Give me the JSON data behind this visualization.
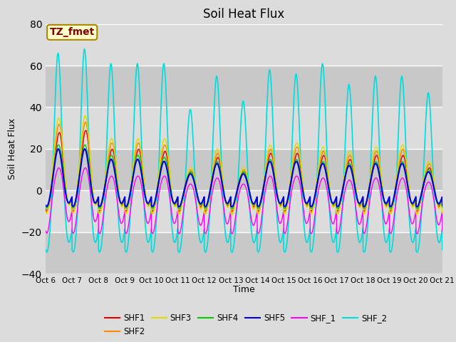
{
  "title": "Soil Heat Flux",
  "xlabel": "Time",
  "ylabel": "Soil Heat Flux",
  "xlim": [
    0,
    15
  ],
  "ylim": [
    -40,
    80
  ],
  "yticks": [
    -40,
    -20,
    0,
    20,
    40,
    60,
    80
  ],
  "xtick_labels": [
    "Oct 6",
    "Oct 7",
    "Oct 8",
    "Oct 9",
    "Oct 10",
    "Oct 11",
    "Oct 12",
    "Oct 13",
    "Oct 14",
    "Oct 15",
    "Oct 16",
    "Oct 17",
    "Oct 18",
    "Oct 19",
    "Oct 20",
    "Oct 21"
  ],
  "series_colors": {
    "SHF1": "#dd0000",
    "SHF2": "#ff8800",
    "SHF3": "#dddd00",
    "SHF4": "#00cc00",
    "SHF5": "#0000dd",
    "SHF_1": "#ff00ff",
    "SHF_2": "#00dddd"
  },
  "annotation_text": "TZ_fmet",
  "annotation_bg": "#ffffcc",
  "annotation_border": "#aa8800",
  "annotation_text_color": "#880000",
  "bg_light": "#dcdcdc",
  "bg_dark": "#c8c8c8",
  "title_fontsize": 12,
  "day_amps_shf5": [
    20,
    20,
    15,
    15,
    14,
    8,
    13,
    8,
    14,
    14,
    13,
    12,
    13,
    13,
    9
  ],
  "day_amps_shf4": [
    22,
    22,
    17,
    17,
    16,
    9,
    14,
    9,
    15,
    15,
    14,
    13,
    14,
    14,
    10
  ],
  "day_amps_shf3": [
    35,
    36,
    25,
    25,
    25,
    11,
    20,
    11,
    22,
    23,
    21,
    19,
    21,
    22,
    14
  ],
  "day_amps_shf2": [
    32,
    33,
    23,
    23,
    22,
    10,
    18,
    10,
    20,
    21,
    19,
    17,
    19,
    20,
    13
  ],
  "day_amps_shf1": [
    28,
    29,
    20,
    20,
    19,
    9,
    16,
    9,
    18,
    18,
    17,
    15,
    17,
    17,
    11
  ],
  "day_amps_shf_1": [
    12,
    12,
    8,
    8,
    8,
    4,
    7,
    4,
    8,
    8,
    7,
    6,
    7,
    7,
    5
  ],
  "day_amps_shf_2": [
    68,
    70,
    63,
    63,
    63,
    41,
    57,
    45,
    60,
    58,
    63,
    53,
    57,
    57,
    49
  ],
  "night_depth_shf1": -10,
  "night_depth_shf2": -11,
  "night_depth_shf3": -12,
  "night_depth_shf4": -9,
  "night_depth_shf5": -8,
  "night_depth_shf_1": -21,
  "night_depth_shf_2": -30
}
